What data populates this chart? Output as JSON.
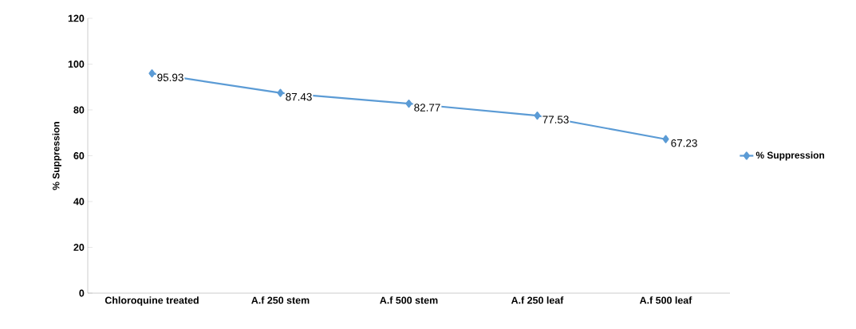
{
  "chart_data": {
    "type": "line",
    "ylabel": "% Suppression",
    "categories": [
      "Chloroquine treated",
      "A.f 250 stem",
      "A.f 500 stem",
      "A.f 250 leaf",
      "A.f 500 leaf"
    ],
    "series": [
      {
        "name": "% Suppression",
        "color": "#5b9bd5",
        "values": [
          95.93,
          87.43,
          82.77,
          77.53,
          67.23
        ]
      }
    ],
    "ylim": [
      0,
      120
    ],
    "yticks": [
      0,
      20,
      40,
      60,
      80,
      100,
      120
    ],
    "marker": "diamond",
    "data_labels": true,
    "legend": "right",
    "grid": false
  }
}
